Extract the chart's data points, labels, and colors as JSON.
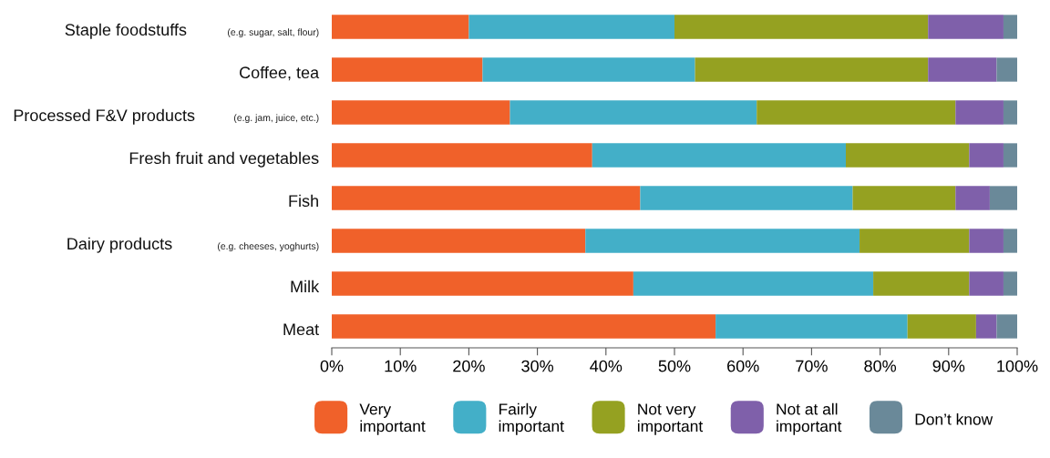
{
  "chart_data": {
    "type": "bar",
    "orientation": "horizontal",
    "stacked": true,
    "categories": [
      "Staple foodstuffs (e.g. sugar, salt, flour)",
      "Coffee, tea",
      "Processed F&V products (e.g. jam, juice, etc.)",
      "Fresh fruit and vegetables",
      "Fish",
      "Dairy products (e.g. cheeses, yoghurts)",
      "Milk",
      "Meat"
    ],
    "series": [
      {
        "name": "Very\nimportant",
        "color": "#f0612a",
        "values": [
          20,
          22,
          26,
          38,
          45,
          37,
          44,
          56
        ]
      },
      {
        "name": "Fairly\nimportant",
        "color": "#43afc8",
        "values": [
          30,
          31,
          36,
          37,
          31,
          40,
          35,
          28
        ]
      },
      {
        "name": "Not very\nimportant",
        "color": "#95a121",
        "values": [
          37,
          34,
          29,
          18,
          15,
          16,
          14,
          10
        ]
      },
      {
        "name": "Not at all\nimportant",
        "color": "#7f60aa",
        "values": [
          11,
          10,
          7,
          5,
          5,
          5,
          5,
          3
        ]
      },
      {
        "name": "Don’t know",
        "color": "#6a8999",
        "values": [
          2,
          3,
          2,
          2,
          4,
          2,
          2,
          3
        ]
      }
    ],
    "xlim": [
      0,
      100
    ],
    "xticks": [
      {
        "value": 0,
        "label": "0%"
      },
      {
        "value": 10,
        "label": "10%"
      },
      {
        "value": 20,
        "label": "20%"
      },
      {
        "value": 30,
        "label": "30%"
      },
      {
        "value": 40,
        "label": "40%"
      },
      {
        "value": 50,
        "label": "50%"
      },
      {
        "value": 60,
        "label": "60%"
      },
      {
        "value": 70,
        "label": "70%"
      },
      {
        "value": 80,
        "label": "80%"
      },
      {
        "value": 90,
        "label": "90%"
      },
      {
        "value": 100,
        "label": "100%"
      }
    ],
    "grid": false,
    "legend": "bottom"
  }
}
